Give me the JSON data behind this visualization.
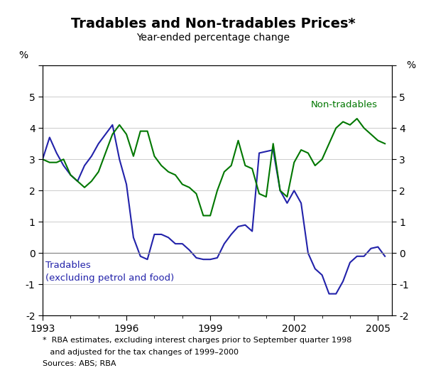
{
  "title": "Tradables and Non-tradables Prices*",
  "subtitle": "Year-ended percentage change",
  "ylabel_left": "%",
  "ylabel_right": "%",
  "ylim": [
    -2,
    6
  ],
  "yticks": [
    -2,
    -1,
    0,
    1,
    2,
    3,
    4,
    5,
    6
  ],
  "ytick_labels": [
    "-2",
    "-1",
    "0",
    "1",
    "2",
    "3",
    "4",
    "5",
    ""
  ],
  "footnote_line1": "*  RBA estimates, excluding interest charges prior to September quarter 1998",
  "footnote_line2": "   and adjusted for the tax changes of 1999–2000",
  "footnote_line3": "Sources: ABS; RBA",
  "tradables_color": "#2222aa",
  "nontradables_color": "#007700",
  "background_color": "#ffffff",
  "tradables_label_line1": "Tradables",
  "tradables_label_line2": "(excluding petrol and food)",
  "nontradables_label": "Non-tradables",
  "dates": [
    1993.0,
    1993.25,
    1993.5,
    1993.75,
    1994.0,
    1994.25,
    1994.5,
    1994.75,
    1995.0,
    1995.25,
    1995.5,
    1995.75,
    1996.0,
    1996.25,
    1996.5,
    1996.75,
    1997.0,
    1997.25,
    1997.5,
    1997.75,
    1998.0,
    1998.25,
    1998.5,
    1998.75,
    1999.0,
    1999.25,
    1999.5,
    1999.75,
    2000.0,
    2000.25,
    2000.5,
    2000.75,
    2001.0,
    2001.25,
    2001.5,
    2001.75,
    2002.0,
    2002.25,
    2002.5,
    2002.75,
    2003.0,
    2003.25,
    2003.5,
    2003.75,
    2004.0,
    2004.25,
    2004.5,
    2004.75,
    2005.0,
    2005.25
  ],
  "tradables": [
    3.0,
    3.7,
    3.2,
    2.8,
    2.5,
    2.3,
    2.8,
    3.1,
    3.5,
    3.8,
    4.1,
    3.0,
    2.2,
    0.5,
    -0.1,
    -0.2,
    0.6,
    0.6,
    0.5,
    0.3,
    0.3,
    0.1,
    -0.15,
    -0.2,
    -0.2,
    -0.15,
    0.3,
    0.6,
    0.85,
    0.9,
    0.7,
    3.2,
    3.25,
    3.3,
    2.0,
    1.6,
    2.0,
    1.6,
    0.0,
    -0.5,
    -0.7,
    -1.3,
    -1.3,
    -0.9,
    -0.3,
    -0.1,
    -0.1,
    0.15,
    0.2,
    -0.1
  ],
  "nontradables": [
    3.0,
    2.9,
    2.9,
    3.0,
    2.5,
    2.3,
    2.1,
    2.3,
    2.6,
    3.2,
    3.8,
    4.1,
    3.8,
    3.1,
    3.9,
    3.9,
    3.1,
    2.8,
    2.6,
    2.5,
    2.2,
    2.1,
    1.9,
    1.2,
    1.2,
    2.0,
    2.6,
    2.8,
    3.6,
    2.8,
    2.7,
    1.9,
    1.8,
    3.5,
    2.0,
    1.8,
    2.9,
    3.3,
    3.2,
    2.8,
    3.0,
    3.5,
    4.0,
    4.2,
    4.1,
    4.3,
    4.0,
    3.8,
    3.6,
    3.5
  ],
  "xtick_years": [
    1993,
    1996,
    1999,
    2002,
    2005
  ],
  "xlim": [
    1993.0,
    2005.5
  ]
}
